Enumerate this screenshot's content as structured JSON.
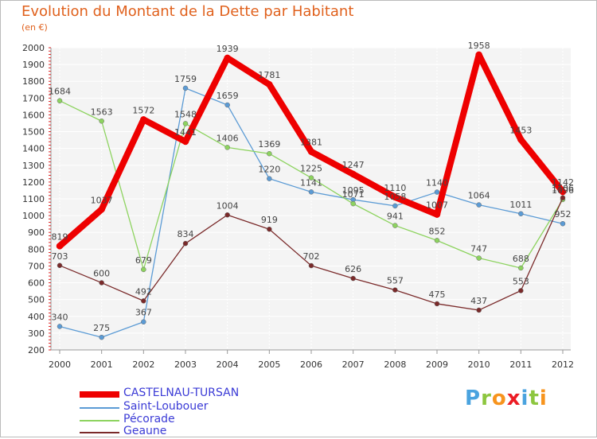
{
  "chart_data": {
    "type": "line",
    "title": "Evolution du Montant de la Dette par Habitant",
    "subtitle": "(en €)",
    "xlabel": "",
    "ylabel": "",
    "x": [
      "2000",
      "2001",
      "2002",
      "2003",
      "2004",
      "2005",
      "2006",
      "2007",
      "2008",
      "2009",
      "2010",
      "2011",
      "2012"
    ],
    "ylim": [
      200,
      2000
    ],
    "yticks": [
      200,
      300,
      400,
      500,
      600,
      700,
      800,
      900,
      1000,
      1100,
      1200,
      1300,
      1400,
      1500,
      1600,
      1700,
      1800,
      1900,
      2000
    ],
    "grid": true,
    "legend_position": "bottom-left",
    "series": [
      {
        "name": "CASTELNAU-TURSAN",
        "color": "#ee0000",
        "width": 8,
        "values": [
          819,
          1037,
          1572,
          1441,
          1939,
          1781,
          1381,
          1247,
          1110,
          1007,
          1958,
          1453,
          1142
        ]
      },
      {
        "name": "Saint-Loubouer",
        "color": "#5b9bd5",
        "width": 1.3,
        "values": [
          340,
          275,
          367,
          1759,
          1659,
          1220,
          1141,
          1095,
          1058,
          1140,
          1064,
          1011,
          952
        ]
      },
      {
        "name": "Pécorade",
        "color": "#8dd35f",
        "width": 1.3,
        "values": [
          1684,
          1563,
          679,
          1548,
          1406,
          1369,
          1225,
          1071,
          941,
          852,
          747,
          688,
          1096
        ]
      },
      {
        "name": "Geaune",
        "color": "#7a2a2a",
        "width": 1.3,
        "values": [
          703,
          600,
          492,
          834,
          1004,
          919,
          702,
          626,
          557,
          475,
          437,
          553,
          1106
        ]
      }
    ],
    "point_labels": [
      {
        "text": "819",
        "x": "2000",
        "y": 819
      },
      {
        "text": "1037",
        "x": "2001",
        "y": 1037
      },
      {
        "text": "1572",
        "x": "2002",
        "y": 1572
      },
      {
        "text": "1441",
        "x": "2003",
        "y": 1441
      },
      {
        "text": "1939",
        "x": "2004",
        "y": 1939
      },
      {
        "text": "1781",
        "x": "2005",
        "y": 1781
      },
      {
        "text": "1381",
        "x": "2006",
        "y": 1381
      },
      {
        "text": "1247",
        "x": "2007",
        "y": 1247
      },
      {
        "text": "1110",
        "x": "2008",
        "y": 1110
      },
      {
        "text": "1007",
        "x": "2009",
        "y": 1007
      },
      {
        "text": "1958",
        "x": "2010",
        "y": 1958
      },
      {
        "text": "1453",
        "x": "2011",
        "y": 1453
      },
      {
        "text": "1142",
        "x": "2012",
        "y": 1142
      },
      {
        "text": "340",
        "x": "2000",
        "y": 340
      },
      {
        "text": "275",
        "x": "2001",
        "y": 275
      },
      {
        "text": "367",
        "x": "2002",
        "y": 367
      },
      {
        "text": "1759",
        "x": "2003",
        "y": 1759
      },
      {
        "text": "1659",
        "x": "2004",
        "y": 1659
      },
      {
        "text": "1220",
        "x": "2005",
        "y": 1220
      },
      {
        "text": "1141",
        "x": "2006",
        "y": 1141
      },
      {
        "text": "1095",
        "x": "2007",
        "y": 1095
      },
      {
        "text": "1058",
        "x": "2008",
        "y": 1058
      },
      {
        "text": "1140",
        "x": "2009",
        "y": 1140
      },
      {
        "text": "1064",
        "x": "2010",
        "y": 1064
      },
      {
        "text": "1011",
        "x": "2011",
        "y": 1011
      },
      {
        "text": "952",
        "x": "2012",
        "y": 952
      },
      {
        "text": "1684",
        "x": "2000",
        "y": 1684
      },
      {
        "text": "1563",
        "x": "2001",
        "y": 1563
      },
      {
        "text": "679",
        "x": "2002",
        "y": 679
      },
      {
        "text": "1548",
        "x": "2003",
        "y": 1548
      },
      {
        "text": "1406",
        "x": "2004",
        "y": 1406
      },
      {
        "text": "1369",
        "x": "2005",
        "y": 1369
      },
      {
        "text": "1225",
        "x": "2006",
        "y": 1225
      },
      {
        "text": "1071",
        "x": "2007",
        "y": 1071
      },
      {
        "text": "941",
        "x": "2008",
        "y": 941
      },
      {
        "text": "852",
        "x": "2009",
        "y": 852
      },
      {
        "text": "747",
        "x": "2010",
        "y": 747
      },
      {
        "text": "688",
        "x": "2011",
        "y": 688
      },
      {
        "text": "1096",
        "x": "2012",
        "y": 1096
      },
      {
        "text": "703",
        "x": "2000",
        "y": 703
      },
      {
        "text": "600",
        "x": "2001",
        "y": 600
      },
      {
        "text": "492",
        "x": "2002",
        "y": 492
      },
      {
        "text": "834",
        "x": "2003",
        "y": 834
      },
      {
        "text": "1004",
        "x": "2004",
        "y": 1004
      },
      {
        "text": "919",
        "x": "2005",
        "y": 919
      },
      {
        "text": "702",
        "x": "2006",
        "y": 702
      },
      {
        "text": "626",
        "x": "2007",
        "y": 626
      },
      {
        "text": "557",
        "x": "2008",
        "y": 557
      },
      {
        "text": "475",
        "x": "2009",
        "y": 475
      },
      {
        "text": "437",
        "x": "2010",
        "y": 437
      },
      {
        "text": "553",
        "x": "2011",
        "y": 553
      },
      {
        "text": "1106",
        "x": "2012",
        "y": 1106
      }
    ]
  },
  "logo": {
    "letters": [
      "P",
      "r",
      "o",
      "x",
      "i",
      "t",
      "i"
    ],
    "colors": [
      "#4aa3df",
      "#8dc63f",
      "#f7941d",
      "#ec1c24",
      "#4aa3df",
      "#8dc63f",
      "#f7941d"
    ]
  }
}
